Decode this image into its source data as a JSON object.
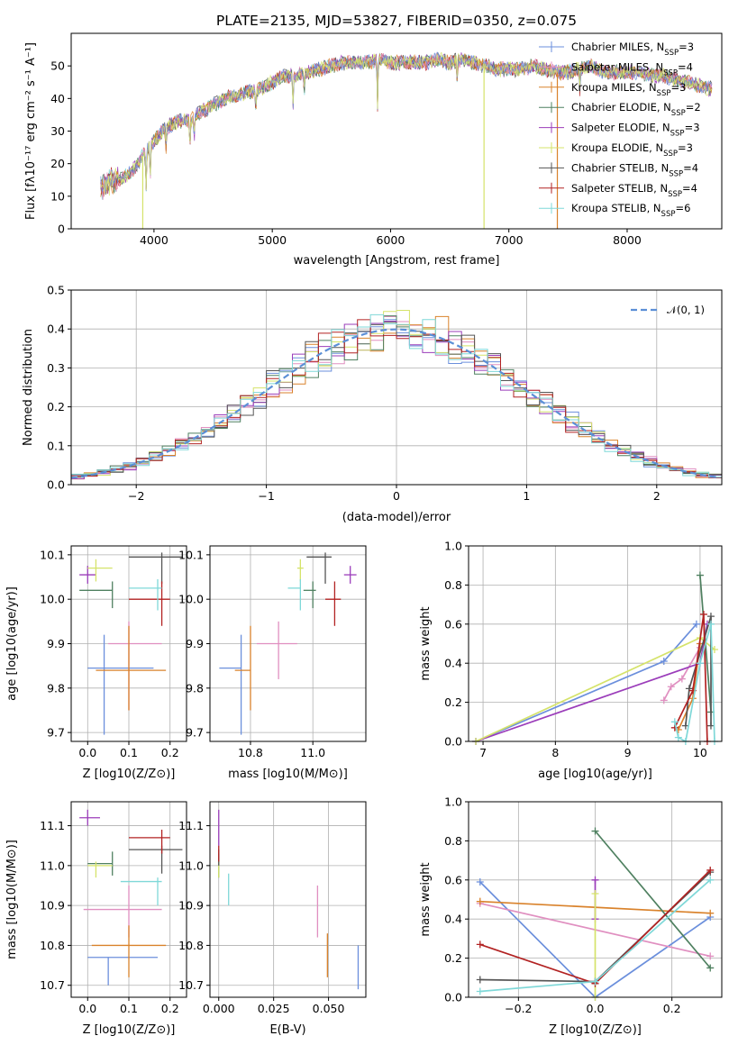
{
  "figure_title": "PLATE=2135, MJD=53827, FIBERID=0350, z=0.075",
  "colors": [
    "#6b8fdc",
    "#e08fc0",
    "#d9822b",
    "#4f8060",
    "#9b3dba",
    "#d5e36a",
    "#555555",
    "#b22222",
    "#7fd8d8"
  ],
  "chart_data": [
    {
      "id": "spectrum",
      "type": "line",
      "title": "PLATE=2135, MJD=53827, FIBERID=0350, z=0.075",
      "xlabel": "wavelength [Angstrom, rest frame]",
      "ylabel": "Flux [fλ10⁻¹⁷ erg cm⁻² s⁻¹ A⁻¹]",
      "xlim": [
        3300,
        8800
      ],
      "ylim": [
        0,
        60
      ],
      "xticks": [
        4000,
        5000,
        6000,
        7000,
        8000
      ],
      "yticks": [
        0,
        10,
        20,
        30,
        40,
        50
      ],
      "legend_position": "upper right",
      "legend": [
        "Chabrier MILES, N_SSP=3",
        "Salpeter MILES, N_SSP=4",
        "Kroupa MILES, N_SSP=3",
        "Chabrier ELODIE, N_SSP=2",
        "Salpeter ELODIE, N_SSP=3",
        "Kroupa ELODIE, N_SSP=3",
        "Chabrier STELIB, N_SSP=4",
        "Salpeter STELIB, N_SSP=4",
        "Kroupa STELIB, N_SSP=6"
      ],
      "continuum": [
        [
          3550,
          13
        ],
        [
          3700,
          15
        ],
        [
          3800,
          17
        ],
        [
          3900,
          22
        ],
        [
          4000,
          27
        ],
        [
          4100,
          31
        ],
        [
          4200,
          33
        ],
        [
          4300,
          33
        ],
        [
          4400,
          36
        ],
        [
          4500,
          38
        ],
        [
          4600,
          40
        ],
        [
          4700,
          41
        ],
        [
          4800,
          42
        ],
        [
          4900,
          43
        ],
        [
          5000,
          45
        ],
        [
          5100,
          47
        ],
        [
          5200,
          47
        ],
        [
          5300,
          48
        ],
        [
          5400,
          49
        ],
        [
          5500,
          50
        ],
        [
          5600,
          51
        ],
        [
          5700,
          51
        ],
        [
          5800,
          51
        ],
        [
          5900,
          52
        ],
        [
          6000,
          51
        ],
        [
          6100,
          51
        ],
        [
          6200,
          51
        ],
        [
          6300,
          51
        ],
        [
          6400,
          52
        ],
        [
          6500,
          51
        ],
        [
          6600,
          52
        ],
        [
          6700,
          51
        ],
        [
          6800,
          50
        ],
        [
          6900,
          49
        ],
        [
          7000,
          49
        ],
        [
          7100,
          49
        ],
        [
          7200,
          50
        ],
        [
          7300,
          49
        ],
        [
          7400,
          48
        ],
        [
          7500,
          48
        ],
        [
          7600,
          49
        ],
        [
          7700,
          50
        ],
        [
          7800,
          48
        ],
        [
          7900,
          48
        ],
        [
          8000,
          48
        ],
        [
          8100,
          48
        ],
        [
          8200,
          47
        ],
        [
          8300,
          47
        ],
        [
          8400,
          46
        ],
        [
          8500,
          45
        ],
        [
          8600,
          44
        ],
        [
          8700,
          43
        ]
      ],
      "dropouts": [
        [
          3905,
          0
        ],
        [
          6790,
          0
        ],
        [
          7410,
          0
        ]
      ]
    },
    {
      "id": "residuals",
      "type": "step",
      "xlabel": "(data-model)/error",
      "ylabel": "Normed distribution",
      "xlim": [
        -2.5,
        2.5
      ],
      "ylim": [
        0,
        0.5
      ],
      "xticks": [
        -2,
        -1,
        0,
        1,
        2
      ],
      "yticks": [
        0.0,
        0.1,
        0.2,
        0.3,
        0.4,
        0.5
      ],
      "reference_curve": "𝒩(0, 1)",
      "legend_position": "upper right",
      "grid": true
    },
    {
      "id": "z_age",
      "type": "errorbar",
      "xlabel": "Z [log10(Z/Z⊙)]",
      "ylabel": "age  [log10(age/yr)]",
      "xlim": [
        -0.04,
        0.24
      ],
      "ylim": [
        9.68,
        10.12
      ],
      "xticks": [
        0.0,
        0.1,
        0.2
      ],
      "yticks": [
        9.7,
        9.8,
        9.9,
        10.0,
        10.1
      ],
      "points": [
        {
          "x": 0.04,
          "y": 9.845,
          "xerr": [
            0.04,
            0.12
          ],
          "yerr": [
            0.15,
            0.075
          ]
        },
        {
          "x": 0.1,
          "y": 9.9,
          "xerr": [
            0.05,
            0.08
          ],
          "yerr": [
            0.15,
            0.05
          ]
        },
        {
          "x": 0.1,
          "y": 9.84,
          "xerr": [
            0.08,
            0.09
          ],
          "yerr": [
            0.09,
            0.1
          ]
        },
        {
          "x": 0.06,
          "y": 10.02,
          "xerr": [
            0.08,
            0.0
          ],
          "yerr": [
            0.04,
            0.02
          ]
        },
        {
          "x": 0.0,
          "y": 10.055,
          "xerr": [
            0.02,
            0.02
          ],
          "yerr": [
            0.02,
            0.02
          ]
        },
        {
          "x": 0.02,
          "y": 10.07,
          "xerr": [
            0.02,
            0.04
          ],
          "yerr": [
            0.03,
            0.02
          ]
        },
        {
          "x": 0.18,
          "y": 10.095,
          "xerr": [
            0.08,
            0.05
          ],
          "yerr": [
            0.06,
            0.01
          ]
        },
        {
          "x": 0.18,
          "y": 10.0,
          "xerr": [
            0.08,
            0.02
          ],
          "yerr": [
            0.06,
            0.04
          ]
        },
        {
          "x": 0.17,
          "y": 10.025,
          "xerr": [
            0.07,
            0.01
          ],
          "yerr": [
            0.05,
            0.02
          ]
        }
      ]
    },
    {
      "id": "mass_age",
      "type": "errorbar",
      "xlabel": "mass [log10(M/M⊙)]",
      "ylabel": "",
      "xlim": [
        10.67,
        11.17
      ],
      "ylim": [
        9.68,
        10.12
      ],
      "xticks": [
        10.8,
        11.0
      ],
      "yticks": [
        9.7,
        9.8,
        9.9,
        10.0,
        10.1
      ],
      "points": [
        {
          "x": 10.77,
          "y": 9.845,
          "xerr": [
            0.07,
            0.0
          ],
          "yerr": [
            0.15,
            0.075
          ]
        },
        {
          "x": 10.89,
          "y": 9.9,
          "xerr": [
            0.07,
            0.06
          ],
          "yerr": [
            0.08,
            0.05
          ]
        },
        {
          "x": 10.8,
          "y": 9.84,
          "xerr": [
            0.05,
            0.0
          ],
          "yerr": [
            0.09,
            0.1
          ]
        },
        {
          "x": 11.0,
          "y": 10.02,
          "xerr": [
            0.03,
            0.01
          ],
          "yerr": [
            0.04,
            0.02
          ]
        },
        {
          "x": 11.12,
          "y": 10.055,
          "xerr": [
            0.02,
            0.02
          ],
          "yerr": [
            0.02,
            0.02
          ]
        },
        {
          "x": 10.96,
          "y": 10.07,
          "xerr": [
            0.01,
            0.01
          ],
          "yerr": [
            0.03,
            0.02
          ]
        },
        {
          "x": 11.04,
          "y": 10.095,
          "xerr": [
            0.06,
            0.02
          ],
          "yerr": [
            0.06,
            0.01
          ]
        },
        {
          "x": 11.07,
          "y": 10.0,
          "xerr": [
            0.03,
            0.02
          ],
          "yerr": [
            0.06,
            0.04
          ]
        },
        {
          "x": 10.96,
          "y": 10.025,
          "xerr": [
            0.04,
            0.0
          ],
          "yerr": [
            0.05,
            0.02
          ]
        }
      ]
    },
    {
      "id": "age_weight",
      "type": "line",
      "xlabel": "age  [log10(age/yr)]",
      "ylabel": "mass weight",
      "xlim": [
        6.8,
        10.3
      ],
      "ylim": [
        0.0,
        1.0
      ],
      "xticks": [
        7,
        8,
        9,
        10
      ],
      "yticks": [
        0.0,
        0.2,
        0.4,
        0.6,
        0.8,
        1.0
      ],
      "series": [
        {
          "points": [
            [
              6.9,
              0.0
            ],
            [
              9.5,
              0.41
            ],
            [
              9.95,
              0.6
            ]
          ]
        },
        {
          "points": [
            [
              9.5,
              0.21
            ],
            [
              9.6,
              0.28
            ],
            [
              9.75,
              0.32
            ],
            [
              10.0,
              0.48
            ]
          ]
        },
        {
          "points": [
            [
              9.7,
              0.06
            ],
            [
              9.9,
              0.22
            ],
            [
              10.0,
              0.5
            ]
          ]
        },
        {
          "points": [
            [
              10.0,
              0.85
            ],
            [
              10.15,
              0.15
            ]
          ]
        },
        {
          "points": [
            [
              6.9,
              0.0
            ],
            [
              10.0,
              0.4
            ],
            [
              10.1,
              0.6
            ]
          ]
        },
        {
          "points": [
            [
              6.9,
              0.0
            ],
            [
              10.0,
              0.53
            ],
            [
              10.2,
              0.47
            ]
          ]
        },
        {
          "points": [
            [
              9.8,
              0.08
            ],
            [
              9.85,
              0.27
            ],
            [
              10.15,
              0.64
            ],
            [
              10.15,
              0.08
            ]
          ]
        },
        {
          "points": [
            [
              9.65,
              0.07
            ],
            [
              9.9,
              0.26
            ],
            [
              10.05,
              0.65
            ],
            [
              10.1,
              0.0
            ]
          ]
        },
        {
          "points": [
            [
              9.65,
              0.1
            ],
            [
              9.7,
              0.02
            ],
            [
              9.8,
              0.0
            ],
            [
              10.0,
              0.4
            ],
            [
              10.15,
              0.6
            ],
            [
              10.2,
              0.0
            ]
          ]
        }
      ]
    },
    {
      "id": "z_mass",
      "type": "errorbar",
      "xlabel": "Z [log10(Z/Z⊙)]",
      "ylabel": "mass [log10(M/M⊙)]",
      "xlim": [
        -0.04,
        0.24
      ],
      "ylim": [
        10.67,
        11.16
      ],
      "xticks": [
        0.0,
        0.1,
        0.2
      ],
      "yticks": [
        10.7,
        10.8,
        10.9,
        11.0,
        11.1
      ],
      "points": [
        {
          "x": 0.05,
          "y": 10.77,
          "xerr": [
            0.05,
            0.12
          ],
          "yerr": [
            0.07,
            0.0
          ]
        },
        {
          "x": 0.1,
          "y": 10.89,
          "xerr": [
            0.11,
            0.08
          ],
          "yerr": [
            0.07,
            0.06
          ]
        },
        {
          "x": 0.1,
          "y": 10.8,
          "xerr": [
            0.09,
            0.09
          ],
          "yerr": [
            0.08,
            0.05
          ]
        },
        {
          "x": 0.06,
          "y": 11.005,
          "xerr": [
            0.06,
            0.0
          ],
          "yerr": [
            0.03,
            0.03
          ]
        },
        {
          "x": 0.0,
          "y": 11.12,
          "xerr": [
            0.02,
            0.03
          ],
          "yerr": [
            0.02,
            0.02
          ]
        },
        {
          "x": 0.02,
          "y": 11.0,
          "xerr": [
            0.02,
            0.04
          ],
          "yerr": [
            0.03,
            0.01
          ]
        },
        {
          "x": 0.18,
          "y": 11.04,
          "xerr": [
            0.08,
            0.05
          ],
          "yerr": [
            0.06,
            0.01
          ]
        },
        {
          "x": 0.18,
          "y": 11.07,
          "xerr": [
            0.08,
            0.02
          ],
          "yerr": [
            0.04,
            0.02
          ]
        },
        {
          "x": 0.17,
          "y": 10.96,
          "xerr": [
            0.09,
            0.01
          ],
          "yerr": [
            0.06,
            0.01
          ]
        }
      ]
    },
    {
      "id": "ebv_mass",
      "type": "errorbar",
      "xlabel": "E(B-V)",
      "ylabel": "",
      "xlim": [
        -0.004,
        0.067
      ],
      "ylim": [
        10.67,
        11.16
      ],
      "xticks": [
        0.0,
        0.025,
        0.05
      ],
      "yticks": [
        10.7,
        10.8,
        10.9,
        11.0,
        11.1
      ],
      "points": [
        {
          "x": 0.0635,
          "y": 10.75,
          "xerr": [
            0,
            0
          ],
          "yerr": [
            0.06,
            0.05
          ]
        },
        {
          "x": 0.045,
          "y": 10.89,
          "xerr": [
            0,
            0
          ],
          "yerr": [
            0.07,
            0.06
          ]
        },
        {
          "x": 0.0495,
          "y": 10.78,
          "xerr": [
            0,
            0
          ],
          "yerr": [
            0.06,
            0.05
          ]
        },
        {
          "x": 0.0,
          "y": 11.0,
          "xerr": [
            0,
            0
          ],
          "yerr": [
            0.03,
            0.03
          ]
        },
        {
          "x": 0.0,
          "y": 11.1,
          "xerr": [
            0,
            0
          ],
          "yerr": [
            0.05,
            0.04
          ]
        },
        {
          "x": 0.0,
          "y": 11.0,
          "xerr": [
            0,
            0
          ],
          "yerr": [
            0.03,
            0.01
          ]
        },
        {
          "x": 0.0,
          "y": 11.02,
          "xerr": [
            0,
            0
          ],
          "yerr": [
            0.02,
            0.02
          ]
        },
        {
          "x": 0.0,
          "y": 11.03,
          "xerr": [
            0,
            0
          ],
          "yerr": [
            0.02,
            0.02
          ]
        },
        {
          "x": 0.0045,
          "y": 10.94,
          "xerr": [
            0,
            0
          ],
          "yerr": [
            0.04,
            0.04
          ]
        }
      ]
    },
    {
      "id": "z_weight",
      "type": "line",
      "xlabel": "Z [log10(Z/Z⊙)]",
      "ylabel": "mass weight",
      "xlim": [
        -0.33,
        0.33
      ],
      "ylim": [
        0.0,
        1.0
      ],
      "xticks": [
        -0.2,
        0.0,
        0.2
      ],
      "yticks": [
        0.0,
        0.2,
        0.4,
        0.6,
        0.8,
        1.0
      ],
      "series": [
        {
          "points": [
            [
              -0.3,
              0.59
            ],
            [
              0.0,
              0.0
            ],
            [
              0.3,
              0.41
            ]
          ]
        },
        {
          "points": [
            [
              -0.3,
              0.48
            ],
            [
              0.3,
              0.21
            ]
          ]
        },
        {
          "points": [
            [
              -0.3,
              0.49
            ],
            [
              0.3,
              0.43
            ]
          ]
        },
        {
          "points": [
            [
              0.0,
              0.85
            ],
            [
              0.3,
              0.15
            ]
          ]
        },
        {
          "points": [
            [
              0.0,
              0.6
            ],
            [
              0.0,
              0.4
            ]
          ]
        },
        {
          "points": [
            [
              0.0,
              0.53
            ],
            [
              0.0,
              0.0
            ]
          ]
        },
        {
          "points": [
            [
              -0.3,
              0.09
            ],
            [
              0.0,
              0.08
            ],
            [
              0.3,
              0.64
            ]
          ]
        },
        {
          "points": [
            [
              -0.3,
              0.27
            ],
            [
              0.0,
              0.07
            ],
            [
              0.3,
              0.65
            ]
          ]
        },
        {
          "points": [
            [
              -0.3,
              0.03
            ],
            [
              0.0,
              0.08
            ],
            [
              0.3,
              0.6
            ]
          ]
        }
      ]
    }
  ]
}
